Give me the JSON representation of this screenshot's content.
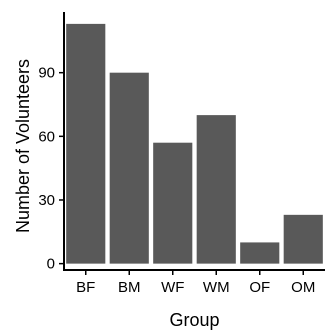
{
  "chart_data": {
    "type": "bar",
    "categories": [
      "BF",
      "BM",
      "WF",
      "WM",
      "OF",
      "OM"
    ],
    "values": [
      113,
      90,
      57,
      70,
      10,
      23
    ],
    "xlabel": "Group",
    "ylabel": "Number of Volunteers",
    "ylim": [
      -3,
      118.6
    ],
    "yticks": [
      0,
      30,
      60,
      90
    ],
    "grid": false,
    "bar_color": "#595959",
    "axis_color": "#000000"
  }
}
